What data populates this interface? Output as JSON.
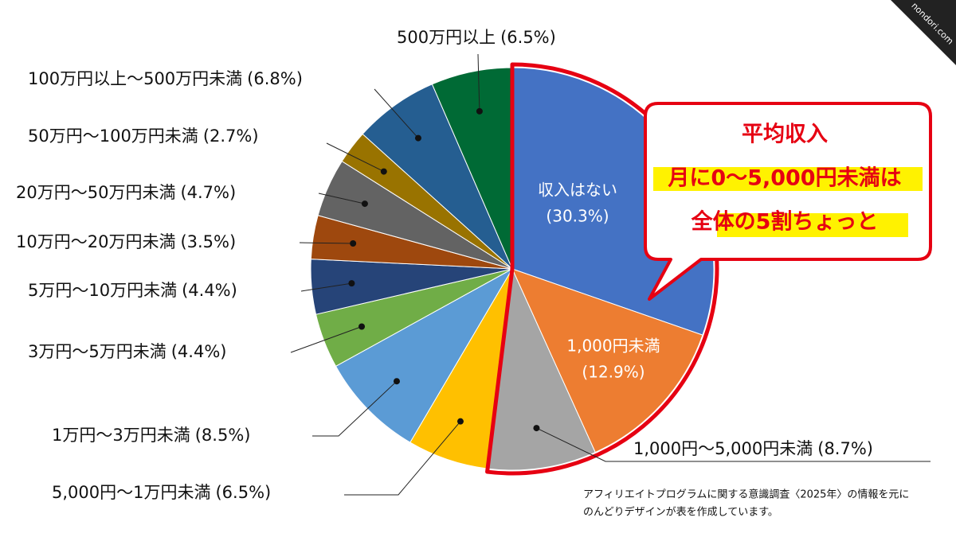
{
  "chart_data": {
    "type": "pie",
    "categories": [
      "収入はない",
      "1,000円未満",
      "1,000円〜5,000円未満",
      "5,000円〜1万円未満",
      "1万円〜3万円未満",
      "3万円〜5万円未満",
      "5万円〜10万円未満",
      "10万円〜20万円未満",
      "20万円〜50万円未満",
      "50万円〜100万円未満",
      "100万円以上〜500万円未満",
      "500万円以上"
    ],
    "values": [
      30.3,
      12.9,
      8.7,
      6.5,
      8.5,
      4.4,
      4.4,
      3.5,
      4.7,
      2.7,
      6.8,
      6.5
    ],
    "value_labels": [
      "(30.3%)",
      "(12.9%)",
      "(8.7%)",
      "(6.5%)",
      "(8.5%)",
      "(4.4%)",
      "(4.4%)",
      "(3.5%)",
      "(4.7%)",
      "(2.7%)",
      "(6.8%)",
      "(6.5%)"
    ],
    "colors": [
      "#4472c4",
      "#ed7d31",
      "#a5a5a5",
      "#ffc000",
      "#5b9bd5",
      "#70ad47",
      "#264478",
      "#9e480e",
      "#636363",
      "#997300",
      "#255e91",
      "#006a35"
    ],
    "callout": [
      "平均収入",
      "月に0〜5,000円未満は",
      "全体の5割ちょっと"
    ],
    "source": [
      "アフィリエイトプログラムに関する意識調査〈2025年〉の情報を元に",
      "のんどりデザインが表を作成しています。"
    ],
    "watermark": "nondori.com"
  }
}
